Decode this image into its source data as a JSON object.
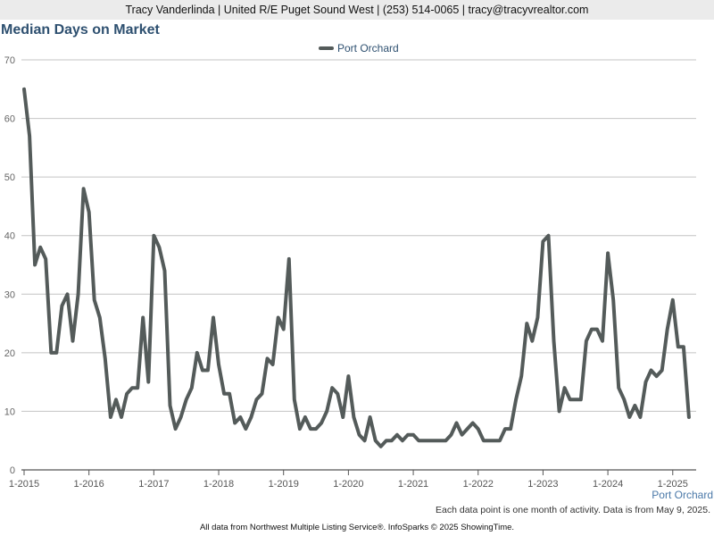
{
  "header": {
    "contact": "Tracy Vanderlinda | United R/E Puget Sound West | (253) 514-0065 | tracy@tracyvrealtor.com"
  },
  "footer": {
    "note": "Each data point is one month of activity. Data is from May 9, 2025.",
    "credits": "All data from Northwest Multiple Listing Service®. InfoSparks © 2025 ShowingTime."
  },
  "colors": {
    "line": "#545b5a",
    "grid": "#c4c4c4",
    "axis": "#555555",
    "title": "#2e5070",
    "legend_text": "#2e5070",
    "axis_label": "#4a78a8"
  },
  "chart_data": {
    "type": "line",
    "title": "Median Days on Market",
    "xlabel": "Port Orchard",
    "ylabel": "",
    "ylim": [
      0,
      70
    ],
    "yticks": [
      0,
      10,
      20,
      30,
      40,
      50,
      60,
      70
    ],
    "xlim": [
      0,
      124
    ],
    "xticks": [
      {
        "label": "1-2015",
        "index": 0
      },
      {
        "label": "1-2016",
        "index": 12
      },
      {
        "label": "1-2017",
        "index": 24
      },
      {
        "label": "1-2018",
        "index": 36
      },
      {
        "label": "1-2019",
        "index": 48
      },
      {
        "label": "1-2020",
        "index": 60
      },
      {
        "label": "1-2021",
        "index": 72
      },
      {
        "label": "1-2022",
        "index": 84
      },
      {
        "label": "1-2023",
        "index": 96
      },
      {
        "label": "1-2024",
        "index": 108
      },
      {
        "label": "1-2025",
        "index": 120
      }
    ],
    "grid": true,
    "legend_position": "top-center",
    "series": [
      {
        "name": "Port Orchard",
        "start": "1-2015",
        "values": [
          65,
          57,
          35,
          38,
          36,
          20,
          20,
          28,
          30,
          22,
          30,
          48,
          44,
          29,
          26,
          19,
          9,
          12,
          9,
          13,
          14,
          14,
          26,
          15,
          40,
          38,
          34,
          11,
          7,
          9,
          12,
          14,
          20,
          17,
          17,
          26,
          18,
          13,
          13,
          8,
          9,
          7,
          9,
          12,
          13,
          19,
          18,
          26,
          24,
          36,
          12,
          7,
          9,
          7,
          7,
          8,
          10,
          14,
          13,
          9,
          16,
          9,
          6,
          5,
          9,
          5,
          4,
          5,
          5,
          6,
          5,
          6,
          6,
          5,
          5,
          5,
          5,
          5,
          5,
          6,
          8,
          6,
          7,
          8,
          7,
          5,
          5,
          5,
          5,
          7,
          7,
          12,
          16,
          25,
          22,
          26,
          39,
          40,
          22,
          10,
          14,
          12,
          12,
          12,
          22,
          24,
          24,
          22,
          37,
          29,
          14,
          12,
          9,
          11,
          9,
          15,
          17,
          16,
          17,
          24,
          29,
          21,
          21,
          9
        ]
      }
    ]
  }
}
